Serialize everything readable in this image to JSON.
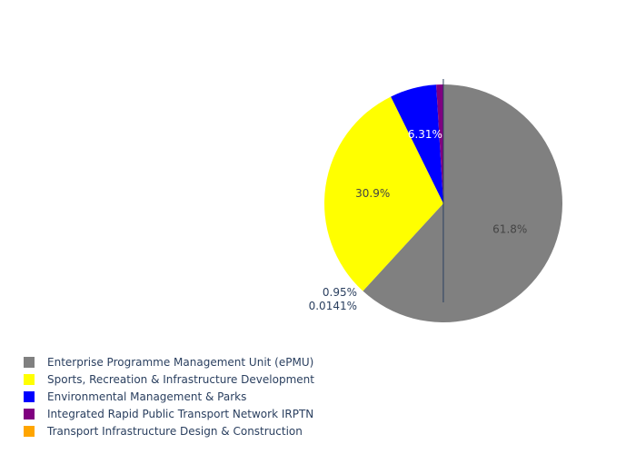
{
  "chart_data": {
    "type": "pie",
    "slices": [
      {
        "label": "Enterprise Programme Management Unit (ePMU)",
        "value": 61.8,
        "percent_text": "61.8%",
        "color": "#808080",
        "text_color": "#444444"
      },
      {
        "label": "Sports, Recreation & Infrastructure Development",
        "value": 30.9,
        "percent_text": "30.9%",
        "color": "#ffff00",
        "text_color": "#444444"
      },
      {
        "label": "Environmental Management & Parks",
        "value": 6.31,
        "percent_text": "6.31%",
        "color": "#0000ff",
        "text_color": "#ffffff"
      },
      {
        "label": "Integrated Rapid Public Transport Network IRPTN",
        "value": 0.95,
        "percent_text": "0.95%",
        "color": "#800080",
        "text_color": "#2a3f5f"
      },
      {
        "label": "Transport Infrastructure Design & Construction",
        "value": 0.0141,
        "percent_text": "0.0141%",
        "color": "#ffa500",
        "text_color": "#2a3f5f"
      }
    ],
    "legend_position": "bottom-left",
    "direction": "clockwise",
    "start": "top"
  }
}
